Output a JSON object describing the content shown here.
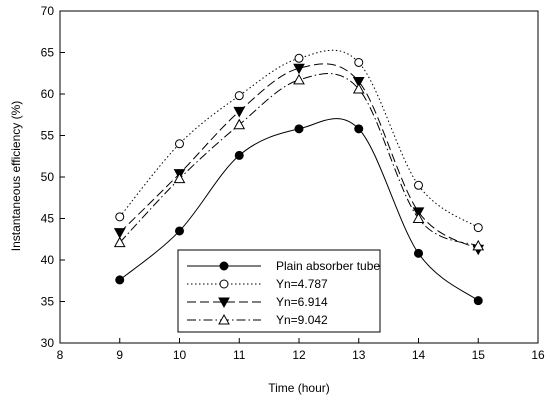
{
  "chart_data": {
    "type": "line",
    "title": "",
    "xlabel": "Time (hour)",
    "ylabel": "Instantaneous efficiency (%)",
    "xlim": [
      8,
      16
    ],
    "ylim": [
      30,
      70
    ],
    "xticks": [
      "8",
      "9",
      "10",
      "11",
      "12",
      "13",
      "14",
      "15",
      "16"
    ],
    "yticks": [
      "30",
      "35",
      "40",
      "45",
      "50",
      "55",
      "60",
      "65",
      "70"
    ],
    "x": [
      9,
      10,
      11,
      12,
      13,
      14,
      15
    ],
    "grid": false,
    "legend_position": "bottom-center",
    "series": [
      {
        "name": "Plain absorber tube",
        "values": [
          37.6,
          43.5,
          52.6,
          55.8,
          55.8,
          40.8,
          35.1
        ],
        "marker": "filled-circle",
        "dash": "solid"
      },
      {
        "name": "Yn=4.787",
        "values": [
          45.2,
          54.0,
          59.8,
          64.3,
          63.8,
          49.0,
          43.9
        ],
        "marker": "open-circle",
        "dash": "dotted"
      },
      {
        "name": "Yn=6.914",
        "values": [
          43.3,
          50.4,
          57.9,
          63.1,
          61.5,
          45.8,
          41.3
        ],
        "marker": "filled-triangle-down",
        "dash": "dashed"
      },
      {
        "name": "Yn=9.042",
        "values": [
          42.1,
          49.8,
          56.3,
          61.7,
          60.6,
          45.0,
          41.7
        ],
        "marker": "open-triangle-up",
        "dash": "dashdot"
      }
    ]
  }
}
